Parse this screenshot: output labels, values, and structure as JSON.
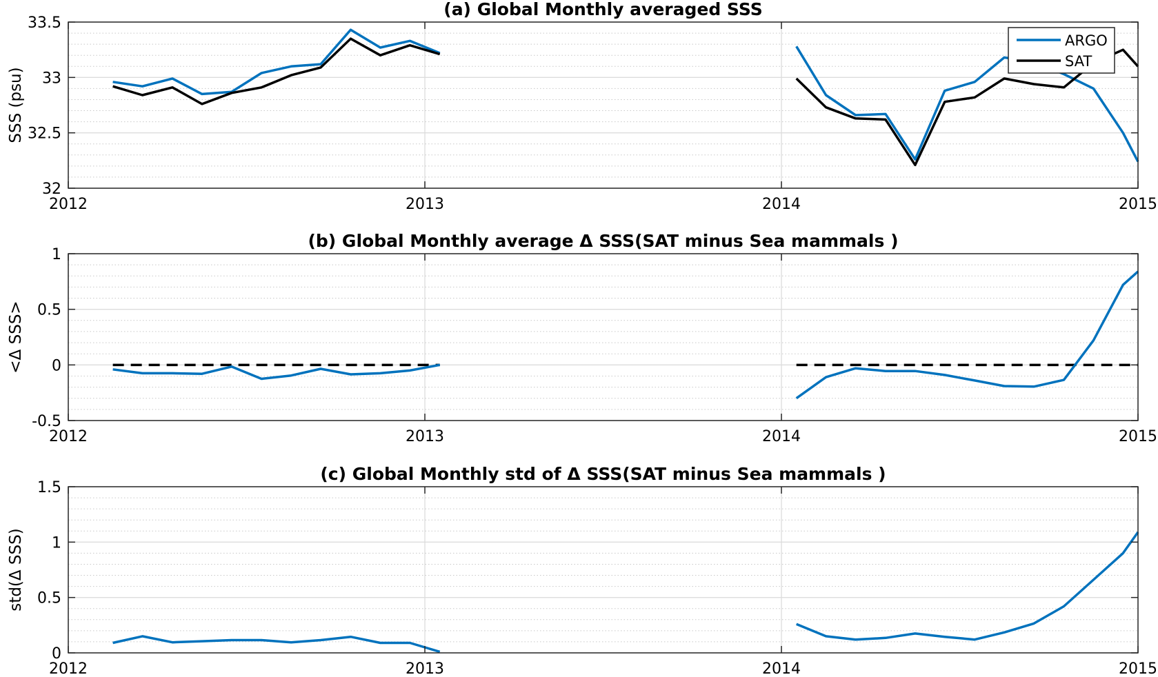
{
  "chart_data": [
    {
      "type": "line",
      "title": "(a) Global Monthly averaged SSS",
      "ylabel": "SSS (psu)",
      "xlabel": "",
      "xlim": [
        2012,
        2015
      ],
      "ylim": [
        32,
        33.5
      ],
      "xticks": [
        2012,
        2013,
        2014,
        2015
      ],
      "xtick_labels": [
        "2012",
        "2013",
        "2014",
        "2015"
      ],
      "yticks": [
        32,
        32.5,
        33,
        33.5
      ],
      "ytick_labels": [
        "32",
        "32.5",
        "33",
        "33.5"
      ],
      "grid": true,
      "minor_grid": true,
      "legend": {
        "position": "top-right",
        "entries": [
          "ARGO",
          "SAT"
        ]
      },
      "series": [
        {
          "name": "ARGO",
          "color": "#0072BD",
          "segments": [
            {
              "x": [
                2012.125,
                2012.208,
                2012.292,
                2012.375,
                2012.458,
                2012.542,
                2012.625,
                2012.708,
                2012.792,
                2012.875,
                2012.958,
                2013.042
              ],
              "y": [
                32.96,
                32.92,
                32.99,
                32.85,
                32.87,
                33.04,
                33.1,
                33.12,
                33.43,
                33.27,
                33.33,
                33.22
              ]
            },
            {
              "x": [
                2014.042,
                2014.125,
                2014.208,
                2014.292,
                2014.375,
                2014.458,
                2014.542,
                2014.625,
                2014.708,
                2014.792,
                2014.875,
                2014.958,
                2015.0
              ],
              "y": [
                33.28,
                32.84,
                32.66,
                32.67,
                32.26,
                32.88,
                32.96,
                33.18,
                33.14,
                33.03,
                32.9,
                32.5,
                32.24
              ]
            }
          ]
        },
        {
          "name": "SAT",
          "color": "#000000",
          "segments": [
            {
              "x": [
                2012.125,
                2012.208,
                2012.292,
                2012.375,
                2012.458,
                2012.542,
                2012.625,
                2012.708,
                2012.792,
                2012.875,
                2012.958,
                2013.042
              ],
              "y": [
                32.92,
                32.84,
                32.91,
                32.76,
                32.86,
                32.91,
                33.02,
                33.09,
                33.35,
                33.2,
                33.29,
                33.21
              ]
            },
            {
              "x": [
                2014.042,
                2014.125,
                2014.208,
                2014.292,
                2014.375,
                2014.458,
                2014.542,
                2014.625,
                2014.708,
                2014.792,
                2014.875,
                2014.958,
                2015.0
              ],
              "y": [
                32.99,
                32.73,
                32.63,
                32.62,
                32.21,
                32.78,
                32.82,
                32.99,
                32.94,
                32.91,
                33.13,
                33.25,
                33.1
              ]
            }
          ]
        }
      ]
    },
    {
      "type": "line",
      "title": "(b) Global Monthly average Δ SSS(SAT minus Sea mammals )",
      "ylabel": "<Δ SSS>",
      "xlabel": "",
      "xlim": [
        2012,
        2015
      ],
      "ylim": [
        -0.5,
        1
      ],
      "xticks": [
        2012,
        2013,
        2014,
        2015
      ],
      "xtick_labels": [
        "2012",
        "2013",
        "2014",
        "2015"
      ],
      "yticks": [
        -0.5,
        0,
        0.5,
        1
      ],
      "ytick_labels": [
        "-0.5",
        "0",
        "0.5",
        "1"
      ],
      "grid": true,
      "minor_grid": true,
      "reference_lines": [
        {
          "y": 0,
          "x": [
            2012.125,
            2013.042
          ],
          "style": "dashed",
          "color": "#000000"
        },
        {
          "y": 0,
          "x": [
            2014.042,
            2015.0
          ],
          "style": "dashed",
          "color": "#000000"
        }
      ],
      "series": [
        {
          "color": "#0072BD",
          "segments": [
            {
              "x": [
                2012.125,
                2012.208,
                2012.292,
                2012.375,
                2012.458,
                2012.542,
                2012.625,
                2012.708,
                2012.792,
                2012.875,
                2012.958,
                2013.042
              ],
              "y": [
                -0.04,
                -0.075,
                -0.075,
                -0.08,
                -0.015,
                -0.125,
                -0.095,
                -0.035,
                -0.085,
                -0.075,
                -0.05,
                0.0
              ]
            },
            {
              "x": [
                2014.042,
                2014.125,
                2014.208,
                2014.292,
                2014.375,
                2014.458,
                2014.542,
                2014.625,
                2014.708,
                2014.792,
                2014.875,
                2014.958,
                2015.0
              ],
              "y": [
                -0.3,
                -0.11,
                -0.03,
                -0.055,
                -0.055,
                -0.09,
                -0.14,
                -0.19,
                -0.195,
                -0.135,
                0.22,
                0.72,
                0.84
              ]
            }
          ]
        }
      ]
    },
    {
      "type": "line",
      "title": "(c) Global Monthly std of Δ SSS(SAT minus Sea mammals )",
      "ylabel": "std(Δ SSS)",
      "xlabel": "",
      "xlim": [
        2012,
        2015
      ],
      "ylim": [
        0,
        1.5
      ],
      "xticks": [
        2012,
        2013,
        2014,
        2015
      ],
      "xtick_labels": [
        "2012",
        "2013",
        "2014",
        "2015"
      ],
      "yticks": [
        0,
        0.5,
        1,
        1.5
      ],
      "ytick_labels": [
        "0",
        "0.5",
        "1",
        "1.5"
      ],
      "grid": true,
      "minor_grid": true,
      "series": [
        {
          "color": "#0072BD",
          "segments": [
            {
              "x": [
                2012.125,
                2012.208,
                2012.292,
                2012.375,
                2012.458,
                2012.542,
                2012.625,
                2012.708,
                2012.792,
                2012.875,
                2012.958,
                2013.042
              ],
              "y": [
                0.09,
                0.15,
                0.095,
                0.105,
                0.115,
                0.115,
                0.095,
                0.115,
                0.145,
                0.09,
                0.09,
                0.01
              ]
            },
            {
              "x": [
                2014.042,
                2014.125,
                2014.208,
                2014.292,
                2014.375,
                2014.458,
                2014.542,
                2014.625,
                2014.708,
                2014.792,
                2014.875,
                2014.958,
                2015.0
              ],
              "y": [
                0.26,
                0.15,
                0.12,
                0.135,
                0.175,
                0.145,
                0.12,
                0.185,
                0.265,
                0.42,
                0.66,
                0.9,
                1.09
              ]
            }
          ]
        }
      ]
    }
  ]
}
